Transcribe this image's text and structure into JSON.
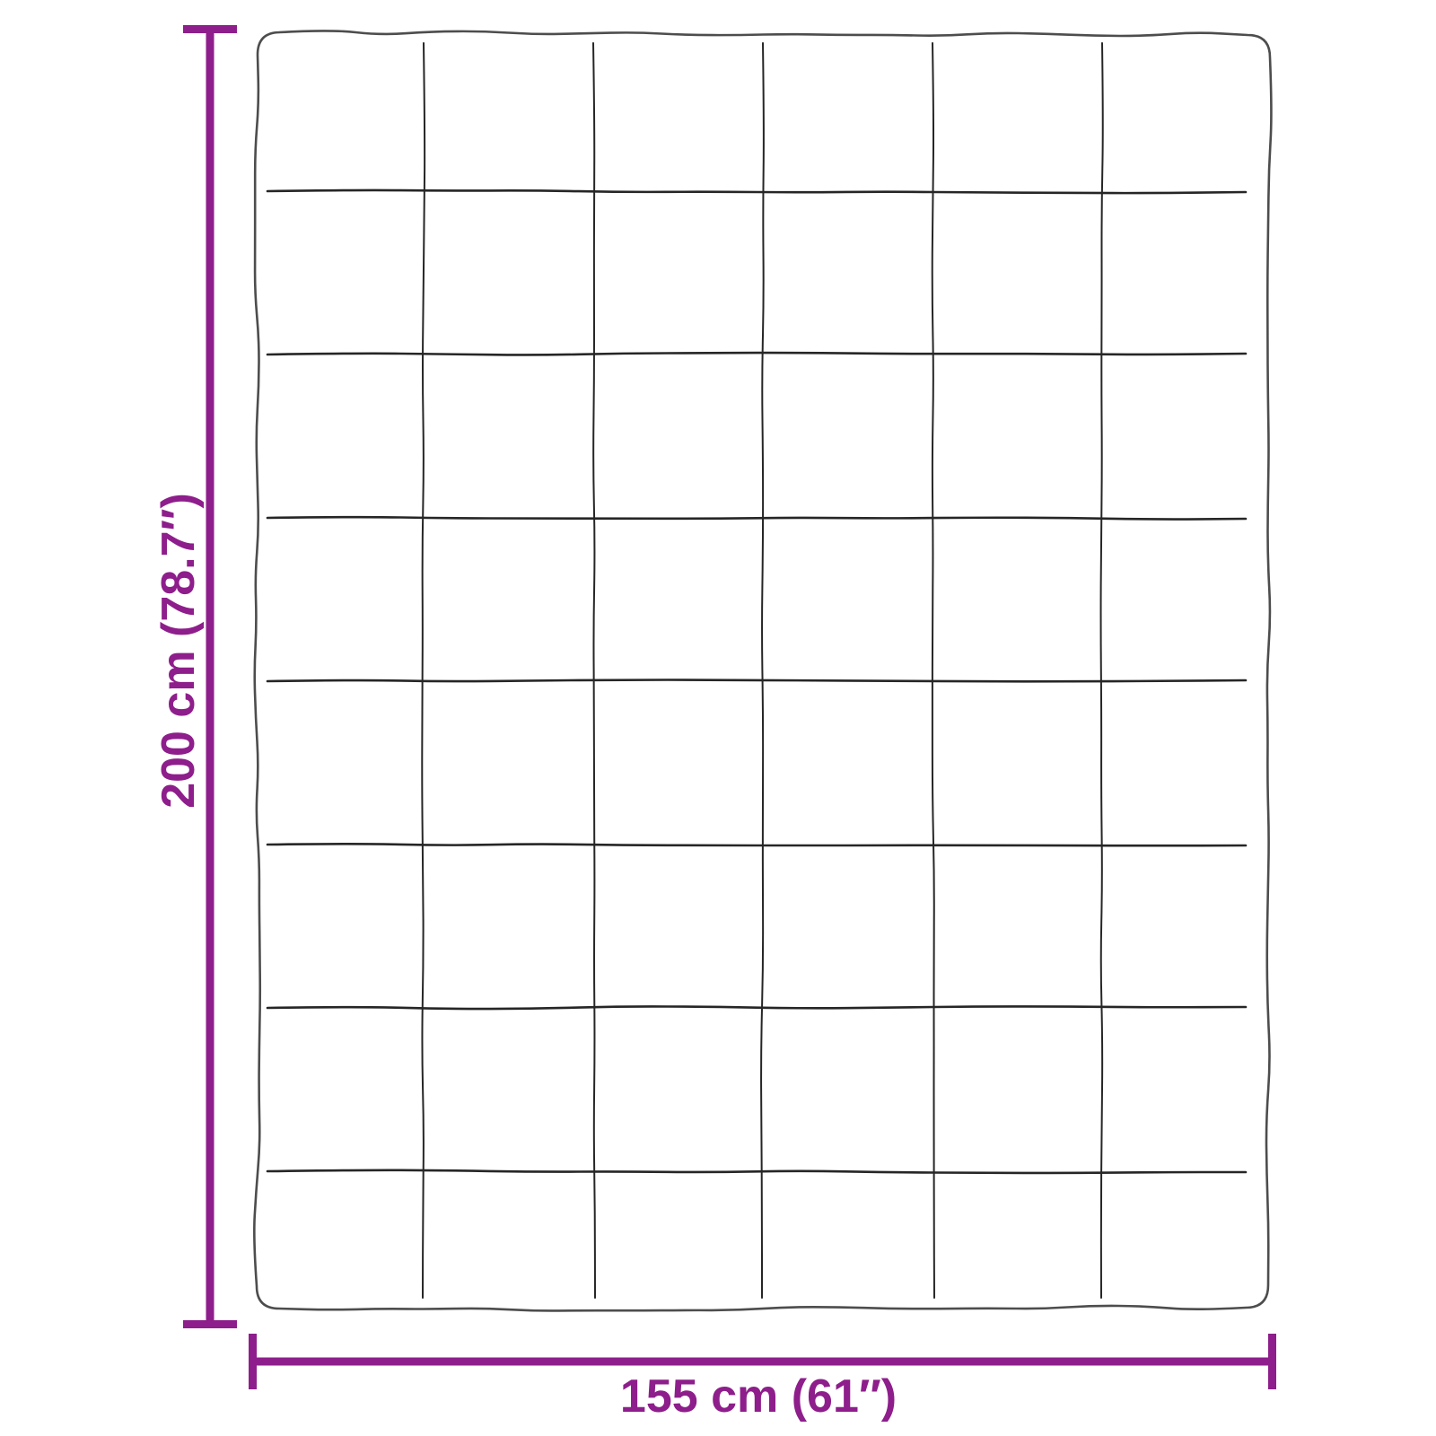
{
  "page": {
    "background_color": "#ffffff"
  },
  "diagram": {
    "kind": "blanket-dimension-diagram",
    "height_label": "200 cm (78.7″)",
    "width_label": "155 cm (61″)",
    "accent_color": "#8e1e8b",
    "outline_color": "#4d4d4d",
    "grid_color": "#262626",
    "quilt_grid": {
      "columns": 6,
      "rows": 8
    }
  }
}
